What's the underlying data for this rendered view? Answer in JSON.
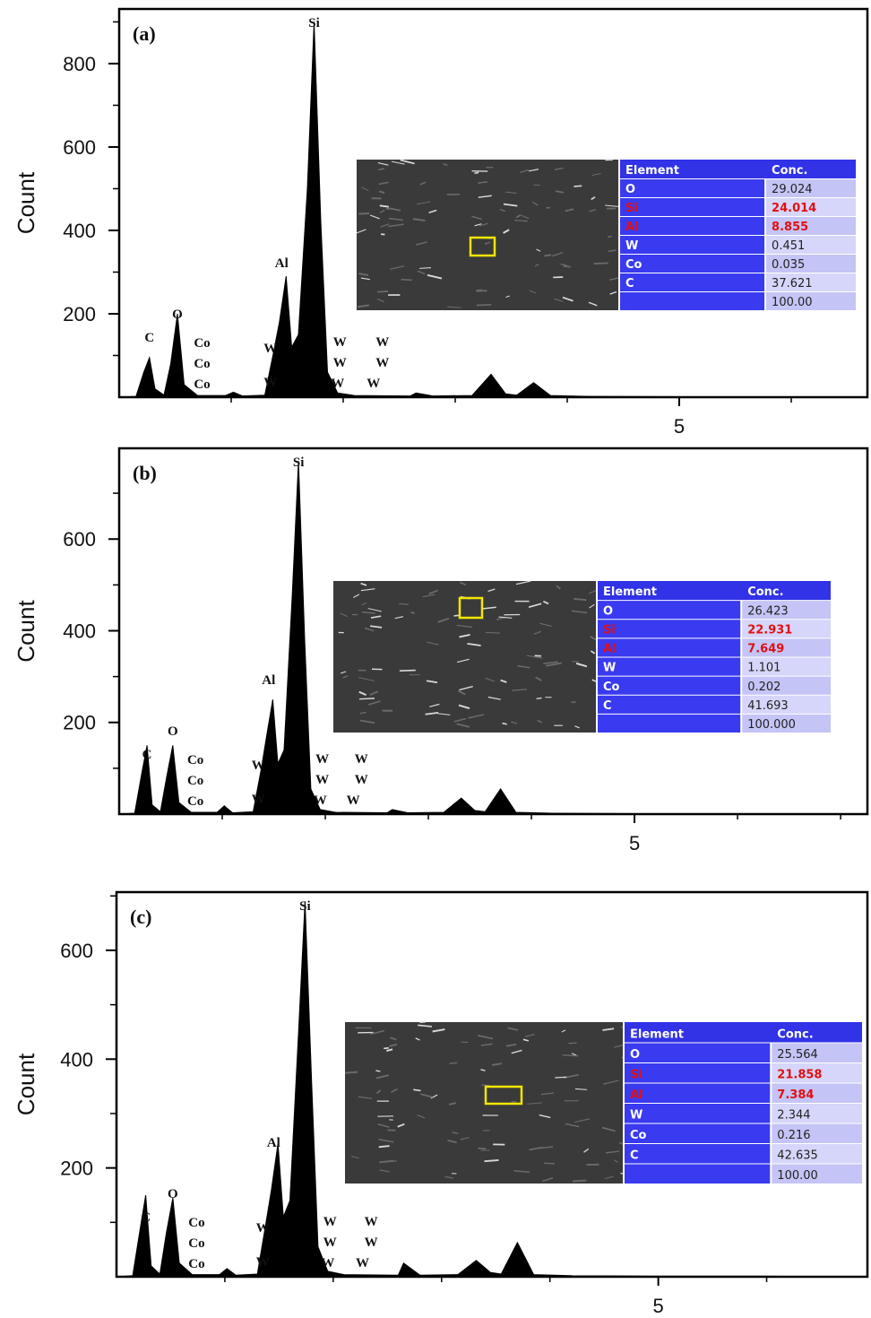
{
  "chart_data": [
    {
      "type": "area",
      "label": "(a)",
      "ylabel": "Count",
      "x": [
        0,
        0.15,
        0.22,
        0.27,
        0.32,
        0.4,
        0.46,
        0.52,
        0.58,
        0.7,
        0.95,
        1.02,
        1.1,
        1.3,
        1.38,
        1.43,
        1.49,
        1.54,
        1.6,
        1.68,
        1.74,
        1.8,
        1.86,
        1.95,
        2.1,
        2.6,
        2.65,
        2.8,
        3.15,
        3.32,
        3.45,
        3.55,
        3.7,
        3.85,
        4.2,
        5,
        6,
        6.68
      ],
      "values": [
        0,
        2,
        60,
        95,
        20,
        5,
        80,
        200,
        30,
        4,
        4,
        12,
        3,
        5,
        110,
        180,
        290,
        120,
        150,
        500,
        900,
        420,
        60,
        10,
        4,
        3,
        10,
        3,
        4,
        55,
        8,
        5,
        35,
        4,
        2,
        1,
        1,
        0
      ],
      "color": "#000000",
      "xlim": [
        0,
        6.68
      ],
      "xticks": [
        5
      ],
      "xminorticks": [
        1,
        2,
        3,
        4,
        6
      ],
      "ylim": [
        0,
        931
      ],
      "yticks": [
        200,
        400,
        600,
        800
      ],
      "yminorticks": [
        100,
        300,
        500,
        700,
        900
      ],
      "annotations": [
        "C",
        "O",
        "Co",
        "Co",
        "Co",
        "Al",
        "Si",
        "W",
        "W",
        "W",
        "W",
        "W",
        "W",
        "W",
        "W"
      ],
      "table": {
        "header": [
          "Element",
          "Conc."
        ],
        "elements": [
          "O",
          "Si",
          "Al",
          "W",
          "Co",
          "C"
        ],
        "conc": [
          "29.024",
          "24.014",
          "8.855",
          "0.451",
          "0.035",
          "37.621"
        ],
        "total": "100.00"
      }
    },
    {
      "type": "area",
      "label": "(b)",
      "ylabel": "Count",
      "x": [
        0,
        0.15,
        0.22,
        0.27,
        0.32,
        0.4,
        0.46,
        0.52,
        0.58,
        0.7,
        0.95,
        1.02,
        1.1,
        1.3,
        1.38,
        1.43,
        1.49,
        1.54,
        1.6,
        1.68,
        1.74,
        1.8,
        1.86,
        1.95,
        2.1,
        2.6,
        2.65,
        2.8,
        3.15,
        3.32,
        3.45,
        3.55,
        3.7,
        3.85,
        4.2,
        5,
        6,
        6.68
      ],
      "values": [
        0,
        2,
        90,
        150,
        20,
        5,
        80,
        150,
        25,
        4,
        4,
        18,
        3,
        5,
        100,
        170,
        250,
        110,
        140,
        480,
        770,
        380,
        55,
        10,
        4,
        3,
        10,
        3,
        4,
        35,
        8,
        5,
        55,
        4,
        2,
        1,
        1,
        0
      ],
      "color": "#000000",
      "xlim": [
        0,
        7.26
      ],
      "xticks": [
        5
      ],
      "xminorticks": [
        1,
        2,
        3,
        4,
        6,
        7
      ],
      "ylim": [
        0,
        798
      ],
      "yticks": [
        200,
        400,
        600
      ],
      "yminorticks": [
        100,
        300,
        500,
        700
      ],
      "annotations": [
        "C",
        "O",
        "Co",
        "Co",
        "Co",
        "Al",
        "Si",
        "W",
        "W",
        "W",
        "W",
        "W",
        "W",
        "W",
        "W"
      ],
      "table": {
        "header": [
          "Element",
          "Conc."
        ],
        "elements": [
          "O",
          "Si",
          "Al",
          "W",
          "Co",
          "C"
        ],
        "conc": [
          "26.423",
          "22.931",
          "7.649",
          "1.101",
          "0.202",
          "41.693"
        ],
        "total": "100.000"
      }
    },
    {
      "type": "area",
      "label": "(c)",
      "ylabel": "Count",
      "x": [
        0,
        0.15,
        0.22,
        0.27,
        0.32,
        0.4,
        0.46,
        0.52,
        0.58,
        0.7,
        0.95,
        1.02,
        1.1,
        1.3,
        1.38,
        1.43,
        1.49,
        1.54,
        1.6,
        1.68,
        1.74,
        1.8,
        1.86,
        1.95,
        2.1,
        2.6,
        2.65,
        2.8,
        3.15,
        3.32,
        3.45,
        3.55,
        3.7,
        3.85,
        4.2,
        5,
        6,
        6.68
      ],
      "values": [
        0,
        2,
        90,
        150,
        20,
        5,
        80,
        145,
        25,
        4,
        4,
        15,
        3,
        5,
        100,
        160,
        245,
        110,
        140,
        450,
        690,
        360,
        55,
        10,
        4,
        3,
        25,
        3,
        4,
        30,
        8,
        5,
        63,
        4,
        2,
        1,
        1,
        0
      ],
      "color": "#000000",
      "xlim": [
        0,
        6.93
      ],
      "xticks": [
        5
      ],
      "xminorticks": [
        1,
        2,
        3,
        4,
        6
      ],
      "ylim": [
        0,
        707
      ],
      "yticks": [
        200,
        400,
        600
      ],
      "yminorticks": [
        100,
        300,
        500,
        700
      ],
      "annotations": [
        "C",
        "O",
        "Co",
        "Co",
        "Co",
        "Al",
        "Si",
        "W",
        "W",
        "W",
        "W",
        "W",
        "W",
        "W",
        "W"
      ],
      "table": {
        "header": [
          "Element",
          "Conc."
        ],
        "elements": [
          "O",
          "Si",
          "Al",
          "W",
          "Co",
          "C"
        ],
        "conc": [
          "25.564",
          "21.858",
          "7.384",
          "2.344",
          "0.216",
          "42.635"
        ],
        "total": "100.00"
      }
    }
  ]
}
